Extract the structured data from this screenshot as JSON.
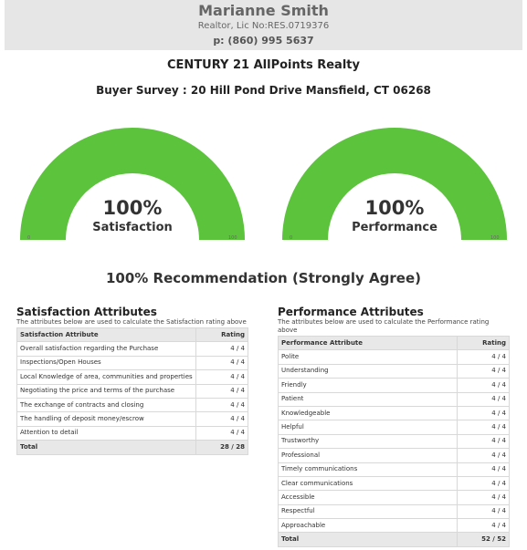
{
  "header": {
    "agent_name": "Marianne Smith",
    "license": "Realtor, Lic No:RES.0719376",
    "phone": "p: (860) 995 5637"
  },
  "company": "CENTURY 21 AllPoints Realty",
  "survey_title": "Buyer Survey : 20 Hill Pond Drive Mansfield, CT 06268",
  "gauges": [
    {
      "percent_text": "100%",
      "label": "Satisfaction",
      "value": 100,
      "min": "0",
      "max": "100",
      "color": "#5cc43c"
    },
    {
      "percent_text": "100%",
      "label": "Performance",
      "value": 100,
      "min": "0",
      "max": "100",
      "color": "#5cc43c"
    }
  ],
  "recommendation": "100% Recommendation (Strongly Agree)",
  "satisfaction": {
    "title": "Satisfaction Attributes",
    "description": "The attributes below are used to calculate the Satisfaction rating above",
    "col_attribute": "Satisfaction Attribute",
    "col_rating": "Rating",
    "rows": [
      {
        "name": "Overall satisfaction regarding the Purchase",
        "rating": "4 / 4"
      },
      {
        "name": "Inspections/Open Houses",
        "rating": "4 / 4"
      },
      {
        "name": "Local Knowledge of area, communities and properties",
        "rating": "4 / 4"
      },
      {
        "name": "Negotiating the price and terms of the purchase",
        "rating": "4 / 4"
      },
      {
        "name": "The exchange of contracts and closing",
        "rating": "4 / 4"
      },
      {
        "name": "The handling of deposit money/escrow",
        "rating": "4 / 4"
      },
      {
        "name": "Attention to detail",
        "rating": "4 / 4"
      }
    ],
    "total_label": "Total",
    "total_value": "28 / 28"
  },
  "performance": {
    "title": "Performance Attributes",
    "description": "The attributes below are used to calculate the Performance rating above",
    "col_attribute": "Performance Attribute",
    "col_rating": "Rating",
    "rows": [
      {
        "name": "Polite",
        "rating": "4 / 4"
      },
      {
        "name": "Understanding",
        "rating": "4 / 4"
      },
      {
        "name": "Friendly",
        "rating": "4 / 4"
      },
      {
        "name": "Patient",
        "rating": "4 / 4"
      },
      {
        "name": "Knowledgeable",
        "rating": "4 / 4"
      },
      {
        "name": "Helpful",
        "rating": "4 / 4"
      },
      {
        "name": "Trustworthy",
        "rating": "4 / 4"
      },
      {
        "name": "Professional",
        "rating": "4 / 4"
      },
      {
        "name": "Timely communications",
        "rating": "4 / 4"
      },
      {
        "name": "Clear communications",
        "rating": "4 / 4"
      },
      {
        "name": "Accessible",
        "rating": "4 / 4"
      },
      {
        "name": "Respectful",
        "rating": "4 / 4"
      },
      {
        "name": "Approachable",
        "rating": "4 / 4"
      }
    ],
    "total_label": "Total",
    "total_value": "52 / 52"
  }
}
